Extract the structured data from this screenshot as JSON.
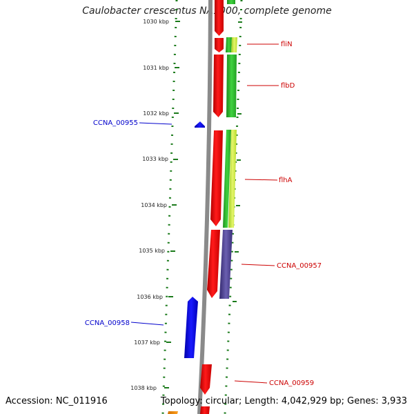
{
  "title": "Caulobacter crescentus NA1000, complete genome",
  "footer": {
    "accession": "Accession: NC_011916",
    "topology": "Topology: circular; Length: 4,042,929 bp; Genes: 3,933"
  },
  "colors": {
    "tick": "#1a7a1a",
    "backbone": "#8a8a8a",
    "forward_gene": "#e00000",
    "reverse_gene": "#0000e0",
    "cds_green": "#2fb52f",
    "cds_lime": "#c8e83a",
    "cds_purple": "#4a3f8a",
    "label_forward": "#cc0000",
    "label_reverse": "#0000cc"
  },
  "ticks": [
    {
      "label": "1030 kbp"
    },
    {
      "label": "1031 kbp"
    },
    {
      "label": "1032 kbp"
    },
    {
      "label": "1033 kbp"
    },
    {
      "label": "1034 kbp"
    },
    {
      "label": "1035 kbp"
    },
    {
      "label": "1036 kbp"
    },
    {
      "label": "1037 kbp"
    },
    {
      "label": "1038 kbp"
    }
  ],
  "gene_labels": [
    {
      "name": "fliN",
      "strand": "forward"
    },
    {
      "name": "flbD",
      "strand": "forward"
    },
    {
      "name": "CCNA_00955",
      "strand": "reverse"
    },
    {
      "name": "flhA",
      "strand": "forward"
    },
    {
      "name": "CCNA_00957",
      "strand": "forward"
    },
    {
      "name": "CCNA_00958",
      "strand": "reverse"
    },
    {
      "name": "CCNA_00959",
      "strand": "forward"
    }
  ]
}
